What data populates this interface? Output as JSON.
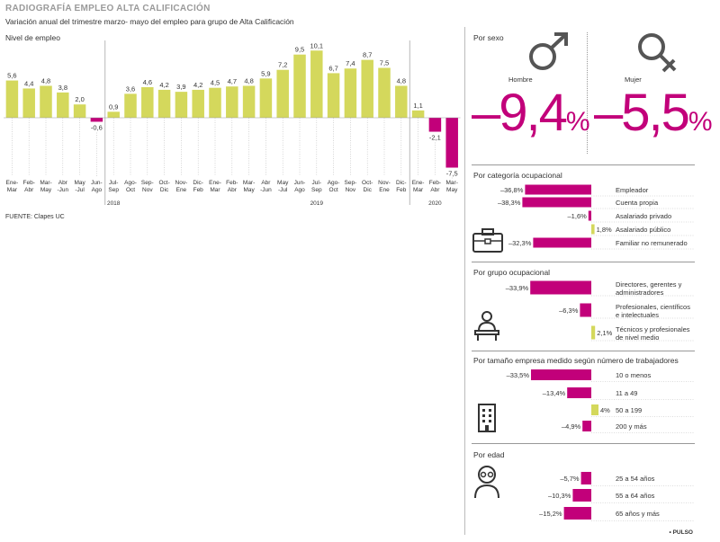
{
  "header": {
    "title": "RADIOGRAFÍA EMPLEO ALTA CALIFICACIÓN",
    "subtitle": "Variación anual del trimestre marzo- mayo del empleo para grupo de Alta Calificación",
    "chart_label": "Nivel de empleo"
  },
  "footer": {
    "source": "FUENTE: Clapes UC",
    "brand": "• PULSO"
  },
  "colors": {
    "positive": "#d4d85c",
    "negative": "#c2007a",
    "text": "#333333"
  },
  "chart_data": [
    {
      "type": "bar",
      "title": "Nivel de empleo",
      "categories": [
        "Ene-Mar",
        "Feb-Abr",
        "Mar-May",
        "Abr-Jun",
        "May-Jul",
        "Jun-Ago",
        "Jul-Sep",
        "Ago-Oct",
        "Sep-Nov",
        "Oct-Dic",
        "Nov-Ene",
        "Dic-Feb",
        "Ene-Mar",
        "Feb-Abr",
        "Mar-May",
        "Abr-Jun",
        "May-Jul",
        "Jun-Ago",
        "Jul-Sep",
        "Ago-Oct",
        "Sep-Nov",
        "Oct-Dic",
        "Nov-Ene",
        "Dic-Feb",
        "Ene-Mar",
        "Feb-Abr",
        "Mar-May"
      ],
      "category_lines": [
        [
          "Ene-",
          "Mar"
        ],
        [
          "Feb-",
          "Abr"
        ],
        [
          "Mar-",
          "May"
        ],
        [
          "Abr",
          "-Jun"
        ],
        [
          "May",
          "-Jul"
        ],
        [
          "Jun-",
          "Ago"
        ],
        [
          "Jul-",
          "Sep"
        ],
        [
          "Ago-",
          "Oct"
        ],
        [
          "Sep-",
          "Nov"
        ],
        [
          "Oct-",
          "Dic"
        ],
        [
          "Nov-",
          "Ene"
        ],
        [
          "Dic-",
          "Feb"
        ],
        [
          "Ene-",
          "Mar"
        ],
        [
          "Feb-",
          "Abr"
        ],
        [
          "Mar-",
          "May"
        ],
        [
          "Abr",
          "-Jun"
        ],
        [
          "May",
          "-Jul"
        ],
        [
          "Jun-",
          "Ago"
        ],
        [
          "Jul-",
          "Sep"
        ],
        [
          "Ago-",
          "Oct"
        ],
        [
          "Sep-",
          "Nov"
        ],
        [
          "Oct-",
          "Dic"
        ],
        [
          "Nov-",
          "Ene"
        ],
        [
          "Dic-",
          "Feb"
        ],
        [
          "Ene-",
          "Mar"
        ],
        [
          "Feb-",
          "Abr"
        ],
        [
          "Mar-",
          "May"
        ]
      ],
      "values": [
        5.6,
        4.4,
        4.8,
        3.8,
        2.0,
        -0.6,
        0.9,
        3.6,
        4.6,
        4.2,
        3.9,
        4.2,
        4.5,
        4.7,
        4.8,
        5.9,
        7.2,
        9.5,
        10.1,
        6.7,
        7.4,
        8.7,
        7.5,
        4.8,
        1.1,
        -2.1,
        -7.5
      ],
      "value_labels": [
        "5,6",
        "4,4",
        "4,8",
        "3,8",
        "2,0",
        "-0,6",
        "0,9",
        "3,6",
        "4,6",
        "4,2",
        "3,9",
        "4,2",
        "4,5",
        "4,7",
        "4,8",
        "5,9",
        "7,2",
        "9,5",
        "10,1",
        "6,7",
        "7,4",
        "8,7",
        "7,5",
        "4,8",
        "1,1",
        "-2,1",
        "-7,5"
      ],
      "years": [
        {
          "label": "2018",
          "index": 6
        },
        {
          "label": "2019",
          "index": 18
        },
        {
          "label": "2020",
          "index": 25
        }
      ],
      "separators_after": [
        5,
        23
      ]
    },
    {
      "type": "table",
      "title": "Por sexo",
      "items": [
        {
          "label": "Hombre",
          "value": -9.4,
          "display": "–9,4",
          "unit": "%"
        },
        {
          "label": "Mujer",
          "value": -5.5,
          "display": "–5,5",
          "unit": "%"
        }
      ]
    },
    {
      "type": "bar",
      "title": "Por categoría ocupacional",
      "categories": [
        "Empleador",
        "Cuenta propia",
        "Asalariado privado",
        "Asalariado público",
        "Familiar no remunerado"
      ],
      "values": [
        -36.8,
        -38.3,
        -1.6,
        1.8,
        -32.3
      ],
      "value_labels": [
        "–36,8%",
        "–38,3%",
        "–1,6%",
        "1,8%",
        "–32,3%"
      ]
    },
    {
      "type": "bar",
      "title": "Por grupo ocupacional",
      "categories": [
        "Directores, gerentes y administradores",
        "Profesionales, científicos e intelectuales",
        "Técnicos y profesionales de nivel medio"
      ],
      "category_lines": [
        [
          "Directores, gerentes y",
          "administradores"
        ],
        [
          "Profesionales, científicos",
          "e intelectuales"
        ],
        [
          "Técnicos y profesionales",
          "de nivel medio"
        ]
      ],
      "values": [
        -33.9,
        -6.3,
        2.1
      ],
      "value_labels": [
        "–33,9%",
        "–6,3%",
        "2,1%"
      ]
    },
    {
      "type": "bar",
      "title": "Por tamaño empresa medido según número de trabajadores",
      "categories": [
        "10 o menos",
        "11 a 49",
        "50 a 199",
        "200 y más"
      ],
      "values": [
        -33.5,
        -13.4,
        4.0,
        -4.9
      ],
      "value_labels": [
        "–33,5%",
        "–13,4%",
        "4%",
        "–4,9%"
      ]
    },
    {
      "type": "bar",
      "title": "Por edad",
      "categories": [
        "25 a 54 años",
        "55 a 64 años",
        "65 años y más"
      ],
      "values": [
        -5.7,
        -10.3,
        -15.2
      ],
      "value_labels": [
        "–5,7%",
        "–10,3%",
        "–15,2%"
      ]
    }
  ],
  "icons": [
    "male-symbol-icon",
    "female-symbol-icon",
    "briefcase-icon",
    "worker-at-desk-icon",
    "office-building-icon",
    "elderly-person-icon"
  ]
}
